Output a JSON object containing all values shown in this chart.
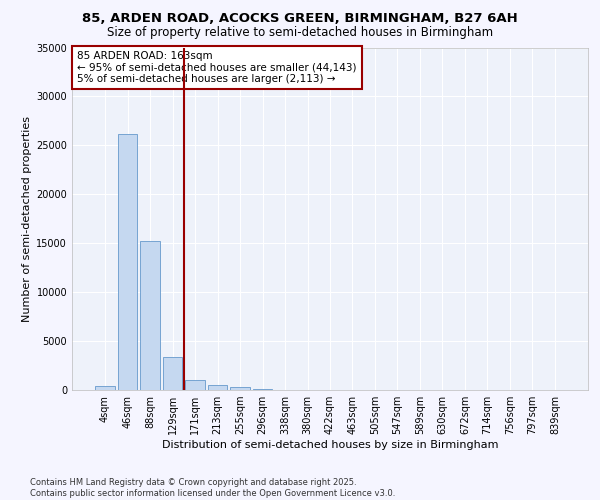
{
  "title_line1": "85, ARDEN ROAD, ACOCKS GREEN, BIRMINGHAM, B27 6AH",
  "title_line2": "Size of property relative to semi-detached houses in Birmingham",
  "xlabel": "Distribution of semi-detached houses by size in Birmingham",
  "ylabel": "Number of semi-detached properties",
  "bar_color": "#c5d8f0",
  "bar_edge_color": "#6699cc",
  "background_color": "#eef2fa",
  "grid_color": "#ffffff",
  "categories": [
    "4sqm",
    "46sqm",
    "88sqm",
    "129sqm",
    "171sqm",
    "213sqm",
    "255sqm",
    "296sqm",
    "338sqm",
    "380sqm",
    "422sqm",
    "463sqm",
    "505sqm",
    "547sqm",
    "589sqm",
    "630sqm",
    "672sqm",
    "714sqm",
    "756sqm",
    "797sqm",
    "839sqm"
  ],
  "values": [
    400,
    26200,
    15200,
    3400,
    1050,
    520,
    280,
    120,
    0,
    0,
    0,
    0,
    0,
    0,
    0,
    0,
    0,
    0,
    0,
    0,
    0
  ],
  "vline_position": 3.5,
  "vline_color": "#990000",
  "annotation_text": "85 ARDEN ROAD: 163sqm\n← 95% of semi-detached houses are smaller (44,143)\n5% of semi-detached houses are larger (2,113) →",
  "annotation_box_color": "#ffffff",
  "annotation_box_edge": "#990000",
  "footer_text": "Contains HM Land Registry data © Crown copyright and database right 2025.\nContains public sector information licensed under the Open Government Licence v3.0.",
  "ylim": [
    0,
    35000
  ],
  "yticks": [
    0,
    5000,
    10000,
    15000,
    20000,
    25000,
    30000,
    35000
  ],
  "title_fontsize": 9.5,
  "subtitle_fontsize": 8.5,
  "axis_label_fontsize": 8,
  "tick_fontsize": 7,
  "annotation_fontsize": 7.5,
  "footer_fontsize": 6
}
